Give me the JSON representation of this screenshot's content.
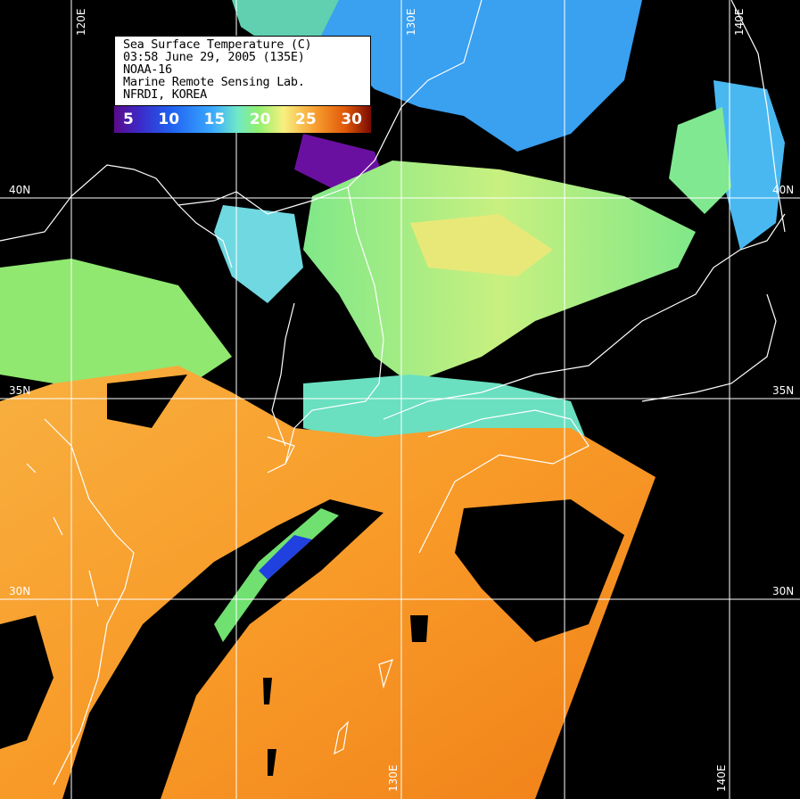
{
  "legend": {
    "lines": [
      "Sea Surface Temperature (C)",
      "03:58 June 29, 2005 (135E)",
      "NOAA-16",
      "Marine Remote Sensing Lab.",
      "NFRDI, KOREA"
    ],
    "colorbar_ticks": [
      "5",
      "10",
      "15",
      "20",
      "25",
      "30"
    ],
    "colorbar_unit": "C",
    "colorbar_range": [
      5,
      30
    ],
    "colors": [
      "#5a0a8a",
      "#2060f0",
      "#3aa8ff",
      "#90f070",
      "#f8f080",
      "#f8a030",
      "#7a0a00"
    ]
  },
  "grid": {
    "longitudes": [
      "120E",
      "130E",
      "140E"
    ],
    "latitudes": [
      "40N",
      "35N",
      "30N"
    ],
    "line_color": "#ffffff"
  },
  "colors": {
    "land_cloud_mask": "#000000",
    "coastline": "#ffffff",
    "warm_sea": "#f89a2a"
  }
}
